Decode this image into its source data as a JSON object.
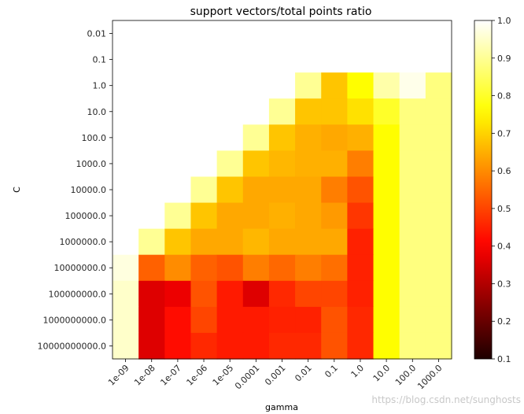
{
  "chart_data": {
    "type": "heatmap",
    "title": "support vectors/total points ratio",
    "xlabel": "gamma",
    "ylabel": "C",
    "x_categories": [
      "1e-09",
      "1e-08",
      "1e-07",
      "1e-06",
      "1e-05",
      "0.0001",
      "0.001",
      "0.01",
      "0.1",
      "1.0",
      "10.0",
      "100.0",
      "1000.0"
    ],
    "y_categories": [
      "0.01",
      "0.1",
      "1.0",
      "10.0",
      "100.0",
      "1000.0",
      "10000.0",
      "100000.0",
      "1000000.0",
      "10000000.0",
      "100000000.0",
      "1000000000.0",
      "10000000000.0"
    ],
    "values": [
      [
        null,
        null,
        null,
        null,
        null,
        null,
        null,
        null,
        null,
        null,
        null,
        null,
        null
      ],
      [
        null,
        null,
        null,
        null,
        null,
        null,
        null,
        null,
        1.0,
        null,
        null,
        null,
        null
      ],
      [
        null,
        null,
        null,
        null,
        null,
        null,
        null,
        0.9,
        0.68,
        0.76,
        0.92,
        0.98,
        0.88
      ],
      [
        null,
        null,
        null,
        null,
        null,
        null,
        0.9,
        0.68,
        0.68,
        0.72,
        0.8,
        0.88,
        0.88
      ],
      [
        null,
        null,
        null,
        null,
        null,
        0.9,
        0.68,
        0.65,
        0.64,
        0.65,
        0.76,
        0.88,
        0.88
      ],
      [
        null,
        null,
        null,
        null,
        0.9,
        0.68,
        0.66,
        0.65,
        0.65,
        0.58,
        0.76,
        0.88,
        0.88
      ],
      [
        null,
        null,
        null,
        0.9,
        0.68,
        0.64,
        0.64,
        0.64,
        0.58,
        0.52,
        0.76,
        0.88,
        0.88
      ],
      [
        null,
        null,
        0.9,
        0.68,
        0.64,
        0.64,
        0.65,
        0.64,
        0.62,
        0.48,
        0.76,
        0.88,
        0.88
      ],
      [
        null,
        0.9,
        0.68,
        0.64,
        0.64,
        0.66,
        0.64,
        0.64,
        0.64,
        0.45,
        0.76,
        0.88,
        0.88
      ],
      [
        0.97,
        0.54,
        0.6,
        0.54,
        0.52,
        0.58,
        0.55,
        0.58,
        0.56,
        0.45,
        0.76,
        0.88,
        0.88
      ],
      [
        0.95,
        0.36,
        0.38,
        0.52,
        0.44,
        0.36,
        0.46,
        0.5,
        0.5,
        0.45,
        0.76,
        0.88,
        0.88
      ],
      [
        0.95,
        0.36,
        0.42,
        0.5,
        0.44,
        0.44,
        0.45,
        0.45,
        0.52,
        0.46,
        0.76,
        0.88,
        0.88
      ],
      [
        0.95,
        0.36,
        0.42,
        0.46,
        0.44,
        0.44,
        0.46,
        0.46,
        0.52,
        0.46,
        0.76,
        0.88,
        0.88
      ]
    ],
    "colormap": "hot",
    "vmin": 0.1,
    "vmax": 1.0,
    "colorbar_ticks": [
      "0.1",
      "0.2",
      "0.3",
      "0.4",
      "0.5",
      "0.6",
      "0.7",
      "0.8",
      "0.9",
      "1.0"
    ],
    "grid": false,
    "colorbar_position": "right"
  },
  "watermark": "https://blog.csdn.net/sunghosts"
}
